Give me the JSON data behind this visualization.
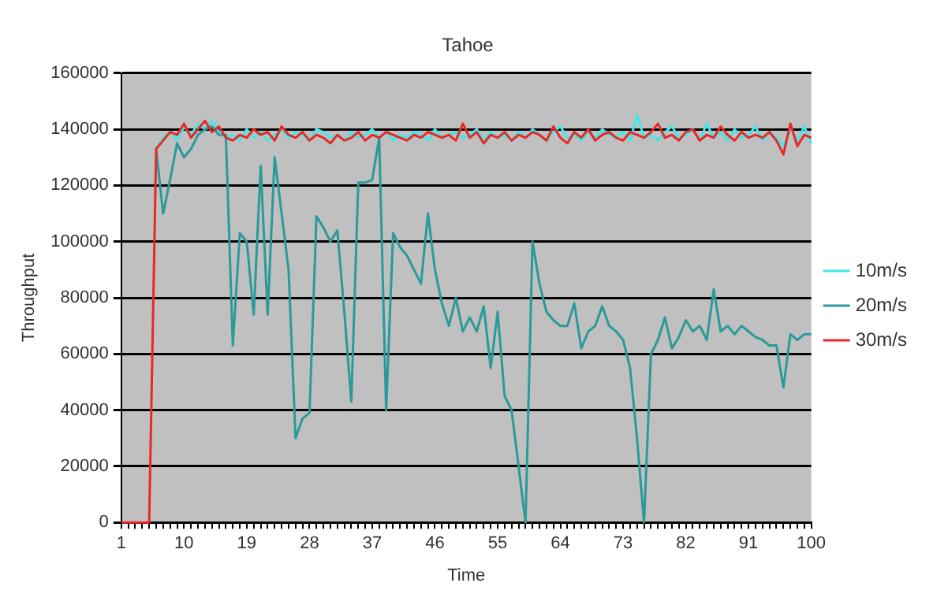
{
  "chart_data": {
    "type": "line",
    "title": "Tahoe",
    "xlabel": "Time",
    "ylabel": "Throughput",
    "categories": [
      "1",
      null,
      null,
      null,
      null,
      null,
      null,
      null,
      null,
      "10",
      null,
      null,
      null,
      null,
      null,
      null,
      null,
      null,
      "19",
      null,
      null,
      null,
      null,
      null,
      null,
      null,
      null,
      "28",
      null,
      null,
      null,
      null,
      null,
      null,
      null,
      null,
      "37",
      null,
      null,
      null,
      null,
      null,
      null,
      null,
      null,
      "46",
      null,
      null,
      null,
      null,
      null,
      null,
      null,
      null,
      "55",
      null,
      null,
      null,
      null,
      null,
      null,
      null,
      null,
      "64",
      null,
      null,
      null,
      null,
      null,
      null,
      null,
      null,
      "73",
      null,
      null,
      null,
      null,
      null,
      null,
      null,
      null,
      "82",
      null,
      null,
      null,
      null,
      null,
      null,
      null,
      null,
      "91",
      null,
      null,
      null,
      null,
      null,
      null,
      null,
      null,
      "100"
    ],
    "series": [
      {
        "name": "10m/s",
        "color": "#40e8e8",
        "values": [
          null,
          null,
          null,
          null,
          null,
          133000,
          137000,
          139000,
          136000,
          141000,
          138000,
          142000,
          140000,
          143000,
          139000,
          137000,
          138000,
          136000,
          140000,
          137000,
          139000,
          136000,
          138000,
          140000,
          137000,
          139000,
          138000,
          136000,
          140000,
          139000,
          137000,
          138000,
          136000,
          139000,
          137000,
          138000,
          140000,
          137000,
          139000,
          136000,
          138000,
          137000,
          139000,
          138000,
          136000,
          140000,
          137000,
          138000,
          139000,
          137000,
          138000,
          140000,
          136000,
          139000,
          137000,
          138000,
          136000,
          139000,
          137000,
          140000,
          138000,
          136000,
          139000,
          141000,
          137000,
          138000,
          136000,
          139000,
          137000,
          140000,
          138000,
          137000,
          139000,
          136000,
          145000,
          137000,
          138000,
          136000,
          139000,
          141000,
          137000,
          138000,
          140000,
          136000,
          142000,
          137000,
          139000,
          136000,
          140000,
          137000,
          138000,
          141000,
          136000,
          139000,
          137000,
          134000,
          140000,
          136000,
          141000,
          135000
        ]
      },
      {
        "name": "20m/s",
        "color": "#2a9a9a",
        "values": [
          null,
          null,
          null,
          null,
          null,
          133000,
          110000,
          122000,
          135000,
          130000,
          133000,
          138000,
          140000,
          141000,
          138000,
          138000,
          63000,
          103000,
          100000,
          74000,
          127000,
          74000,
          130000,
          110000,
          90000,
          30000,
          37000,
          39000,
          109000,
          105000,
          100000,
          104000,
          75000,
          43000,
          121000,
          121000,
          122000,
          137000,
          40000,
          103000,
          98000,
          95000,
          90000,
          85000,
          110000,
          90000,
          78000,
          70000,
          80000,
          68000,
          73000,
          68000,
          77000,
          55000,
          75000,
          45000,
          40000,
          20000,
          0,
          100000,
          85000,
          75000,
          72000,
          70000,
          70000,
          78000,
          62000,
          68000,
          70000,
          77000,
          70000,
          68000,
          65000,
          55000,
          30000,
          0,
          60000,
          65000,
          73000,
          62000,
          66000,
          72000,
          68000,
          70000,
          65000,
          83000,
          68000,
          70000,
          67000,
          70000,
          68000,
          66000,
          65000,
          63000,
          63000,
          48000,
          67000,
          65000,
          67000,
          67000
        ]
      },
      {
        "name": "30m/s",
        "color": "#e82828",
        "values": [
          0,
          0,
          0,
          0,
          0,
          133000,
          136000,
          139000,
          138000,
          142000,
          137000,
          140000,
          143000,
          139000,
          141000,
          137000,
          136000,
          138000,
          137000,
          140000,
          138000,
          139000,
          136000,
          141000,
          138000,
          137000,
          139000,
          136000,
          138000,
          137000,
          135000,
          138000,
          136000,
          137000,
          139000,
          136000,
          138000,
          137000,
          139000,
          138000,
          137000,
          136000,
          138000,
          137000,
          139000,
          138000,
          137000,
          138000,
          136000,
          142000,
          137000,
          139000,
          135000,
          138000,
          137000,
          139000,
          136000,
          138000,
          137000,
          139000,
          138000,
          136000,
          141000,
          137000,
          135000,
          139000,
          137000,
          140000,
          136000,
          138000,
          139000,
          137000,
          136000,
          139000,
          138000,
          137000,
          139000,
          142000,
          137000,
          138000,
          136000,
          139000,
          140000,
          136000,
          138000,
          137000,
          141000,
          138000,
          136000,
          139000,
          137000,
          138000,
          137000,
          139000,
          136000,
          131000,
          142000,
          134000,
          138000,
          137000
        ]
      }
    ],
    "ylim": [
      0,
      160000
    ],
    "yticks": [
      0,
      20000,
      40000,
      60000,
      80000,
      100000,
      120000,
      140000,
      160000
    ],
    "grid": "y",
    "legend": "right",
    "marker": "none",
    "line_style": "solid"
  }
}
